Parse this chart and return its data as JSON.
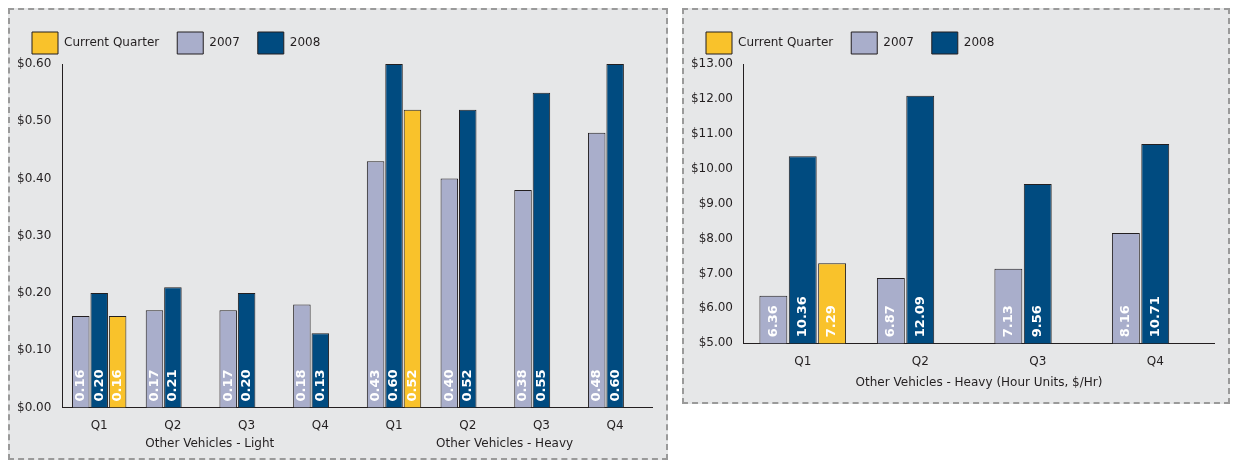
{
  "chart_data": [
    {
      "type": "bar",
      "categories": [
        "Q1",
        "Q2",
        "Q3",
        "Q4",
        "Q1",
        "Q2",
        "Q3",
        "Q4"
      ],
      "series": [
        {
          "name": "2007",
          "color": "#a9aecb",
          "values": [
            0.16,
            0.17,
            0.17,
            0.18,
            0.43,
            0.4,
            0.38,
            0.48
          ],
          "value_labels": [
            "0.16",
            "0.17",
            "0.17",
            "0.18",
            "0.43",
            "0.40",
            "0.38",
            "0.48"
          ]
        },
        {
          "name": "2008",
          "color": "#004b80",
          "values": [
            0.2,
            0.21,
            0.2,
            0.13,
            0.6,
            0.52,
            0.55,
            0.6
          ],
          "value_labels": [
            "0.20",
            "0.21",
            "0.20",
            "0.13",
            "0.60",
            "0.52",
            "0.55",
            "0.60"
          ]
        },
        {
          "name": "Current Quarter",
          "color": "#f9c22b",
          "values": [
            0.16,
            null,
            null,
            null,
            0.52,
            null,
            null,
            null
          ],
          "value_labels": [
            "0.16",
            null,
            null,
            null,
            "0.52",
            null,
            null,
            null
          ]
        }
      ],
      "ylim": [
        0,
        0.6
      ],
      "yticks": [
        {
          "value": 0,
          "label": "$0.00"
        },
        {
          "value": 0.1,
          "label": "$0.10"
        },
        {
          "value": 0.2,
          "label": "$0.20"
        },
        {
          "value": 0.3,
          "label": "$0.30"
        },
        {
          "value": 0.4,
          "label": "$0.40"
        },
        {
          "value": 0.5,
          "label": "$0.50"
        },
        {
          "value": 0.6,
          "label": "$0.60"
        }
      ],
      "annotations": [
        "Other Vehicles - Light",
        "Other Vehicles - Heavy"
      ],
      "grid": false,
      "legend": "top"
    },
    {
      "type": "bar",
      "categories": [
        "Q1",
        "Q2",
        "Q3",
        "Q4"
      ],
      "series": [
        {
          "name": "2007",
          "color": "#a9aecb",
          "values": [
            6.36,
            6.87,
            7.13,
            8.16
          ],
          "value_labels": [
            "6.36",
            "6.87",
            "7.13",
            "8.16"
          ]
        },
        {
          "name": "2008",
          "color": "#004b80",
          "values": [
            10.36,
            12.09,
            9.56,
            10.71
          ],
          "value_labels": [
            "10.36",
            "12.09",
            "9.56",
            "10.71"
          ]
        },
        {
          "name": "Current Quarter",
          "color": "#f9c22b",
          "values": [
            7.29,
            null,
            null,
            null
          ],
          "value_labels": [
            "7.29",
            null,
            null,
            null
          ]
        }
      ],
      "ylim": [
        5,
        13
      ],
      "yticks": [
        {
          "value": 5,
          "label": "$5.00"
        },
        {
          "value": 6,
          "label": "$6.00"
        },
        {
          "value": 7,
          "label": "$7.00"
        },
        {
          "value": 8,
          "label": "$8.00"
        },
        {
          "value": 9,
          "label": "$9.00"
        },
        {
          "value": 10,
          "label": "$10.00"
        },
        {
          "value": 11,
          "label": "$11.00"
        },
        {
          "value": 12,
          "label": "$12.00"
        },
        {
          "value": 13,
          "label": "$13.00"
        }
      ],
      "xlabel": "Other Vehicles - Heavy (Hour Units, $/Hr)",
      "grid": false,
      "legend": "top"
    }
  ]
}
